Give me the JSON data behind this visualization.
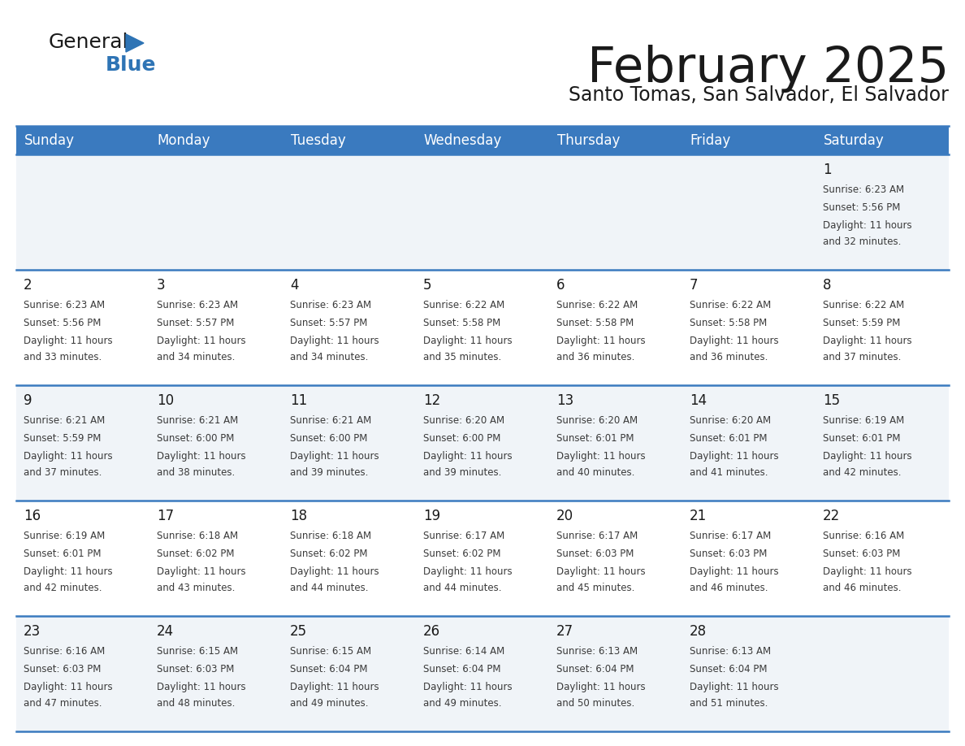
{
  "title": "February 2025",
  "subtitle": "Santo Tomas, San Salvador, El Salvador",
  "header_color": "#3a7abf",
  "header_text_color": "#ffffff",
  "cell_bg_even": "#f0f4f8",
  "cell_bg_odd": "#ffffff",
  "border_color": "#3a7abf",
  "day_headers": [
    "Sunday",
    "Monday",
    "Tuesday",
    "Wednesday",
    "Thursday",
    "Friday",
    "Saturday"
  ],
  "title_color": "#1a1a1a",
  "subtitle_color": "#1a1a1a",
  "logo_general_color": "#1a1a1a",
  "logo_blue_color": "#2e74b5",
  "logo_triangle_color": "#2e74b5",
  "days": [
    {
      "day": 1,
      "col": 6,
      "row": 0,
      "sunrise": "6:23 AM",
      "sunset": "5:56 PM",
      "daylight": "11 hours and 32 minutes."
    },
    {
      "day": 2,
      "col": 0,
      "row": 1,
      "sunrise": "6:23 AM",
      "sunset": "5:56 PM",
      "daylight": "11 hours and 33 minutes."
    },
    {
      "day": 3,
      "col": 1,
      "row": 1,
      "sunrise": "6:23 AM",
      "sunset": "5:57 PM",
      "daylight": "11 hours and 34 minutes."
    },
    {
      "day": 4,
      "col": 2,
      "row": 1,
      "sunrise": "6:23 AM",
      "sunset": "5:57 PM",
      "daylight": "11 hours and 34 minutes."
    },
    {
      "day": 5,
      "col": 3,
      "row": 1,
      "sunrise": "6:22 AM",
      "sunset": "5:58 PM",
      "daylight": "11 hours and 35 minutes."
    },
    {
      "day": 6,
      "col": 4,
      "row": 1,
      "sunrise": "6:22 AM",
      "sunset": "5:58 PM",
      "daylight": "11 hours and 36 minutes."
    },
    {
      "day": 7,
      "col": 5,
      "row": 1,
      "sunrise": "6:22 AM",
      "sunset": "5:58 PM",
      "daylight": "11 hours and 36 minutes."
    },
    {
      "day": 8,
      "col": 6,
      "row": 1,
      "sunrise": "6:22 AM",
      "sunset": "5:59 PM",
      "daylight": "11 hours and 37 minutes."
    },
    {
      "day": 9,
      "col": 0,
      "row": 2,
      "sunrise": "6:21 AM",
      "sunset": "5:59 PM",
      "daylight": "11 hours and 37 minutes."
    },
    {
      "day": 10,
      "col": 1,
      "row": 2,
      "sunrise": "6:21 AM",
      "sunset": "6:00 PM",
      "daylight": "11 hours and 38 minutes."
    },
    {
      "day": 11,
      "col": 2,
      "row": 2,
      "sunrise": "6:21 AM",
      "sunset": "6:00 PM",
      "daylight": "11 hours and 39 minutes."
    },
    {
      "day": 12,
      "col": 3,
      "row": 2,
      "sunrise": "6:20 AM",
      "sunset": "6:00 PM",
      "daylight": "11 hours and 39 minutes."
    },
    {
      "day": 13,
      "col": 4,
      "row": 2,
      "sunrise": "6:20 AM",
      "sunset": "6:01 PM",
      "daylight": "11 hours and 40 minutes."
    },
    {
      "day": 14,
      "col": 5,
      "row": 2,
      "sunrise": "6:20 AM",
      "sunset": "6:01 PM",
      "daylight": "11 hours and 41 minutes."
    },
    {
      "day": 15,
      "col": 6,
      "row": 2,
      "sunrise": "6:19 AM",
      "sunset": "6:01 PM",
      "daylight": "11 hours and 42 minutes."
    },
    {
      "day": 16,
      "col": 0,
      "row": 3,
      "sunrise": "6:19 AM",
      "sunset": "6:01 PM",
      "daylight": "11 hours and 42 minutes."
    },
    {
      "day": 17,
      "col": 1,
      "row": 3,
      "sunrise": "6:18 AM",
      "sunset": "6:02 PM",
      "daylight": "11 hours and 43 minutes."
    },
    {
      "day": 18,
      "col": 2,
      "row": 3,
      "sunrise": "6:18 AM",
      "sunset": "6:02 PM",
      "daylight": "11 hours and 44 minutes."
    },
    {
      "day": 19,
      "col": 3,
      "row": 3,
      "sunrise": "6:17 AM",
      "sunset": "6:02 PM",
      "daylight": "11 hours and 44 minutes."
    },
    {
      "day": 20,
      "col": 4,
      "row": 3,
      "sunrise": "6:17 AM",
      "sunset": "6:03 PM",
      "daylight": "11 hours and 45 minutes."
    },
    {
      "day": 21,
      "col": 5,
      "row": 3,
      "sunrise": "6:17 AM",
      "sunset": "6:03 PM",
      "daylight": "11 hours and 46 minutes."
    },
    {
      "day": 22,
      "col": 6,
      "row": 3,
      "sunrise": "6:16 AM",
      "sunset": "6:03 PM",
      "daylight": "11 hours and 46 minutes."
    },
    {
      "day": 23,
      "col": 0,
      "row": 4,
      "sunrise": "6:16 AM",
      "sunset": "6:03 PM",
      "daylight": "11 hours and 47 minutes."
    },
    {
      "day": 24,
      "col": 1,
      "row": 4,
      "sunrise": "6:15 AM",
      "sunset": "6:03 PM",
      "daylight": "11 hours and 48 minutes."
    },
    {
      "day": 25,
      "col": 2,
      "row": 4,
      "sunrise": "6:15 AM",
      "sunset": "6:04 PM",
      "daylight": "11 hours and 49 minutes."
    },
    {
      "day": 26,
      "col": 3,
      "row": 4,
      "sunrise": "6:14 AM",
      "sunset": "6:04 PM",
      "daylight": "11 hours and 49 minutes."
    },
    {
      "day": 27,
      "col": 4,
      "row": 4,
      "sunrise": "6:13 AM",
      "sunset": "6:04 PM",
      "daylight": "11 hours and 50 minutes."
    },
    {
      "day": 28,
      "col": 5,
      "row": 4,
      "sunrise": "6:13 AM",
      "sunset": "6:04 PM",
      "daylight": "11 hours and 51 minutes."
    }
  ]
}
